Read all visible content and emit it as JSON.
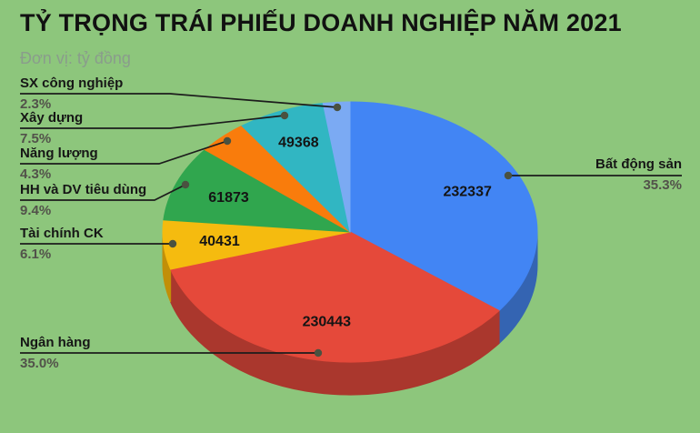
{
  "page": {
    "title": "TỶ TRỌNG TRÁI PHIẾU DOANH NGHIỆP NĂM 2021",
    "subtitle": "Đơn vị: tỷ đồng",
    "background_color": "#8dc67c"
  },
  "chart_data": {
    "type": "pie",
    "title": "TỶ TRỌNG TRÁI PHIẾU DOANH NGHIỆP NĂM 2021",
    "subtitle": "Đơn vị: tỷ đồng",
    "unit": "tỷ đồng",
    "effect": "3d",
    "direction": "clockwise",
    "start_angle_deg": 0,
    "legend_position": "callout-labels",
    "value_label_color": "#141414",
    "leader_line_color": "#1c1c1c",
    "leader_dot_color": "#4a5140",
    "slices": [
      {
        "label": "Bất động sản",
        "value": 232337,
        "percent": 35.3,
        "percent_label": "35.3%",
        "color": "#4285f4",
        "side_color": "#3464b2"
      },
      {
        "label": "Ngân hàng",
        "value": 230443,
        "percent": 35.0,
        "percent_label": "35.0%",
        "color": "#e5493a",
        "side_color": "#aa372d"
      },
      {
        "label": "Tài chính CK",
        "value": 40431,
        "percent": 6.1,
        "percent_label": "6.1%",
        "color": "#f5bb0f",
        "side_color": "#c18f08"
      },
      {
        "label": "HH và DV tiêu dùng",
        "value": 61873,
        "percent": 9.4,
        "percent_label": "9.4%",
        "color": "#30a64e",
        "side_color": "#1f7a37"
      },
      {
        "label": "Năng lượng",
        "value": null,
        "percent": 4.3,
        "percent_label": "4.3%",
        "color": "#f97c0c",
        "side_color": "#b95a07"
      },
      {
        "label": "Xây dựng",
        "value": 49368,
        "percent": 7.5,
        "percent_label": "7.5%",
        "color": "#31b6c2",
        "side_color": "#238891"
      },
      {
        "label": "SX công nghiệp",
        "value": null,
        "percent": 2.3,
        "percent_label": "2.3%",
        "color": "#7baaf3",
        "side_color": "#5a7fb8"
      }
    ]
  }
}
